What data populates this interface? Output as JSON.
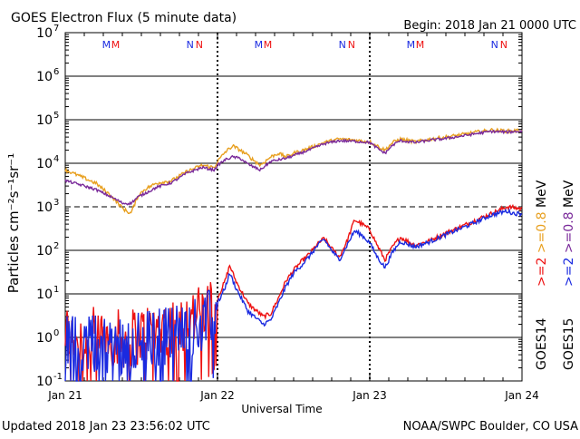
{
  "header": {
    "title": "GOES Electron Flux (5 minute data)",
    "begin": "Begin: 2018 Jan 21 0000 UTC"
  },
  "footer": {
    "updated": "Updated 2018 Jan 23 23:56:02 UTC",
    "credit": "NOAA/SWPC Boulder, CO USA"
  },
  "colors": {
    "goes14_high": "#e8a020",
    "goes15_high": "#7a2a9a",
    "goes14_low": "#ee1111",
    "goes15_low": "#1a2ae0",
    "marker_m": "#1a2ae0",
    "marker_n_blue": "#1a2ae0",
    "marker_n_red": "#ee1111"
  },
  "chart_data": {
    "type": "line",
    "xlabel": "Universal Time",
    "ylabel": "Particles cm⁻²s⁻¹sr⁻¹",
    "x_unit": "days since 2018 Jan 21 0000 UTC",
    "xlim": [
      0,
      3
    ],
    "ylim": [
      0.1,
      10000000
    ],
    "yscale": "log",
    "grid": "horizontal at each decade",
    "dashed_line_at": 1000,
    "x_ticks": [
      {
        "x": 0,
        "label": "Jan 21"
      },
      {
        "x": 1,
        "label": "Jan 22"
      },
      {
        "x": 2,
        "label": "Jan 23"
      },
      {
        "x": 3,
        "label": "Jan 24"
      }
    ],
    "y_ticks": [
      {
        "value": 0.1,
        "base": "10",
        "exp": "-1"
      },
      {
        "value": 1,
        "base": "10",
        "exp": "0"
      },
      {
        "value": 10,
        "base": "10",
        "exp": "1"
      },
      {
        "value": 100,
        "base": "10",
        "exp": "2"
      },
      {
        "value": 1000,
        "base": "10",
        "exp": "3"
      },
      {
        "value": 10000,
        "base": "10",
        "exp": "4"
      },
      {
        "value": 100000,
        "base": "10",
        "exp": "5"
      },
      {
        "value": 1000000,
        "base": "10",
        "exp": "6"
      },
      {
        "value": 10000000,
        "base": "10",
        "exp": "7"
      }
    ],
    "top_markers": [
      {
        "x": 0.27,
        "letter": "M",
        "color": "#1a2ae0"
      },
      {
        "x": 0.33,
        "letter": "M",
        "color": "#ee1111"
      },
      {
        "x": 0.82,
        "letter": "N",
        "color": "#1a2ae0"
      },
      {
        "x": 0.88,
        "letter": "N",
        "color": "#ee1111"
      },
      {
        "x": 1.27,
        "letter": "M",
        "color": "#1a2ae0"
      },
      {
        "x": 1.33,
        "letter": "M",
        "color": "#ee1111"
      },
      {
        "x": 1.82,
        "letter": "N",
        "color": "#1a2ae0"
      },
      {
        "x": 1.88,
        "letter": "N",
        "color": "#ee1111"
      },
      {
        "x": 2.27,
        "letter": "M",
        "color": "#1a2ae0"
      },
      {
        "x": 2.33,
        "letter": "M",
        "color": "#ee1111"
      },
      {
        "x": 2.82,
        "letter": "N",
        "color": "#1a2ae0"
      },
      {
        "x": 2.88,
        "letter": "N",
        "color": "#ee1111"
      }
    ],
    "series": [
      {
        "name": "GOES14 >=0.8 MeV",
        "color": "#e8a020",
        "noise": 0.04,
        "points": [
          [
            0,
            7000
          ],
          [
            0.1,
            5000
          ],
          [
            0.2,
            3500
          ],
          [
            0.3,
            1800
          ],
          [
            0.38,
            900
          ],
          [
            0.43,
            700
          ],
          [
            0.48,
            1800
          ],
          [
            0.52,
            2500
          ],
          [
            0.6,
            3500
          ],
          [
            0.7,
            4000
          ],
          [
            0.8,
            6500
          ],
          [
            0.9,
            9000
          ],
          [
            0.98,
            8000
          ],
          [
            1.0,
            11000
          ],
          [
            1.05,
            18000
          ],
          [
            1.1,
            25000
          ],
          [
            1.15,
            20000
          ],
          [
            1.2,
            15000
          ],
          [
            1.28,
            9000
          ],
          [
            1.35,
            14000
          ],
          [
            1.4,
            17000
          ],
          [
            1.45,
            14000
          ],
          [
            1.5,
            17000
          ],
          [
            1.6,
            22000
          ],
          [
            1.7,
            30000
          ],
          [
            1.8,
            36000
          ],
          [
            1.9,
            34000
          ],
          [
            2.0,
            31000
          ],
          [
            2.05,
            25000
          ],
          [
            2.1,
            20000
          ],
          [
            2.15,
            30000
          ],
          [
            2.2,
            36000
          ],
          [
            2.3,
            31000
          ],
          [
            2.4,
            36000
          ],
          [
            2.5,
            40000
          ],
          [
            2.6,
            45000
          ],
          [
            2.7,
            52000
          ],
          [
            2.8,
            58000
          ],
          [
            2.9,
            55000
          ],
          [
            3.0,
            57000
          ]
        ]
      },
      {
        "name": "GOES15 >=0.8 MeV",
        "color": "#7a2a9a",
        "noise": 0.03,
        "points": [
          [
            0,
            4000
          ],
          [
            0.1,
            3200
          ],
          [
            0.2,
            2500
          ],
          [
            0.3,
            1700
          ],
          [
            0.38,
            1200
          ],
          [
            0.43,
            1200
          ],
          [
            0.48,
            1700
          ],
          [
            0.52,
            2000
          ],
          [
            0.6,
            2800
          ],
          [
            0.7,
            3600
          ],
          [
            0.8,
            6000
          ],
          [
            0.9,
            8000
          ],
          [
            0.98,
            7000
          ],
          [
            1.0,
            9000
          ],
          [
            1.05,
            12000
          ],
          [
            1.1,
            14000
          ],
          [
            1.15,
            13000
          ],
          [
            1.2,
            9500
          ],
          [
            1.28,
            7000
          ],
          [
            1.35,
            11000
          ],
          [
            1.4,
            12000
          ],
          [
            1.45,
            13000
          ],
          [
            1.5,
            15000
          ],
          [
            1.6,
            20000
          ],
          [
            1.7,
            28000
          ],
          [
            1.8,
            33000
          ],
          [
            1.9,
            32000
          ],
          [
            2.0,
            30000
          ],
          [
            2.05,
            22000
          ],
          [
            2.1,
            17000
          ],
          [
            2.15,
            26000
          ],
          [
            2.2,
            33000
          ],
          [
            2.3,
            30000
          ],
          [
            2.4,
            34000
          ],
          [
            2.5,
            37000
          ],
          [
            2.6,
            42000
          ],
          [
            2.7,
            48000
          ],
          [
            2.8,
            54000
          ],
          [
            2.9,
            52000
          ],
          [
            3.0,
            55000
          ]
        ]
      },
      {
        "name": "GOES14 >=2 MeV",
        "color": "#ee1111",
        "noise": 0.05,
        "noisy_until": 1.0,
        "points": [
          [
            0,
            1.2
          ],
          [
            0.2,
            1.0
          ],
          [
            0.4,
            0.9
          ],
          [
            0.6,
            1.5
          ],
          [
            0.8,
            2.5
          ],
          [
            0.95,
            4
          ],
          [
            1.0,
            8
          ],
          [
            1.05,
            20
          ],
          [
            1.08,
            45
          ],
          [
            1.12,
            20
          ],
          [
            1.2,
            6
          ],
          [
            1.3,
            3
          ],
          [
            1.35,
            3.5
          ],
          [
            1.4,
            8
          ],
          [
            1.45,
            20
          ],
          [
            1.5,
            35
          ],
          [
            1.55,
            55
          ],
          [
            1.6,
            80
          ],
          [
            1.65,
            130
          ],
          [
            1.7,
            190
          ],
          [
            1.75,
            110
          ],
          [
            1.8,
            70
          ],
          [
            1.85,
            160
          ],
          [
            1.9,
            500
          ],
          [
            1.95,
            400
          ],
          [
            2.0,
            300
          ],
          [
            2.05,
            130
          ],
          [
            2.1,
            60
          ],
          [
            2.15,
            120
          ],
          [
            2.2,
            200
          ],
          [
            2.3,
            130
          ],
          [
            2.4,
            170
          ],
          [
            2.5,
            250
          ],
          [
            2.6,
            350
          ],
          [
            2.7,
            500
          ],
          [
            2.8,
            700
          ],
          [
            2.9,
            1000
          ],
          [
            2.95,
            950
          ],
          [
            3.0,
            900
          ]
        ]
      },
      {
        "name": "GOES15 >=2 MeV",
        "color": "#1a2ae0",
        "noise": 0.05,
        "noisy_until": 1.0,
        "points": [
          [
            0,
            0.8
          ],
          [
            0.2,
            0.7
          ],
          [
            0.4,
            0.7
          ],
          [
            0.6,
            1.0
          ],
          [
            0.8,
            1.6
          ],
          [
            0.95,
            2.5
          ],
          [
            1.0,
            6
          ],
          [
            1.05,
            14
          ],
          [
            1.08,
            30
          ],
          [
            1.12,
            14
          ],
          [
            1.2,
            4
          ],
          [
            1.3,
            2
          ],
          [
            1.35,
            2.5
          ],
          [
            1.4,
            6
          ],
          [
            1.45,
            15
          ],
          [
            1.5,
            30
          ],
          [
            1.55,
            45
          ],
          [
            1.6,
            70
          ],
          [
            1.65,
            120
          ],
          [
            1.7,
            180
          ],
          [
            1.75,
            100
          ],
          [
            1.8,
            60
          ],
          [
            1.85,
            130
          ],
          [
            1.9,
            280
          ],
          [
            1.95,
            220
          ],
          [
            2.0,
            150
          ],
          [
            2.05,
            70
          ],
          [
            2.1,
            40
          ],
          [
            2.15,
            90
          ],
          [
            2.2,
            160
          ],
          [
            2.3,
            120
          ],
          [
            2.4,
            160
          ],
          [
            2.5,
            230
          ],
          [
            2.6,
            320
          ],
          [
            2.7,
            450
          ],
          [
            2.8,
            650
          ],
          [
            2.9,
            800
          ],
          [
            2.95,
            700
          ],
          [
            3.0,
            700
          ]
        ]
      }
    ],
    "legend": {
      "placement": "right",
      "entries": [
        {
          "group": "GOES14",
          "low": ">=2",
          "high": ">=0.8",
          "unit": "MeV",
          "low_color": "#ee1111",
          "high_color": "#e8a020"
        },
        {
          "group": "GOES15",
          "low": ">=2",
          "high": ">=0.8",
          "unit": "MeV",
          "low_color": "#1a2ae0",
          "high_color": "#7a2a9a"
        }
      ]
    }
  }
}
